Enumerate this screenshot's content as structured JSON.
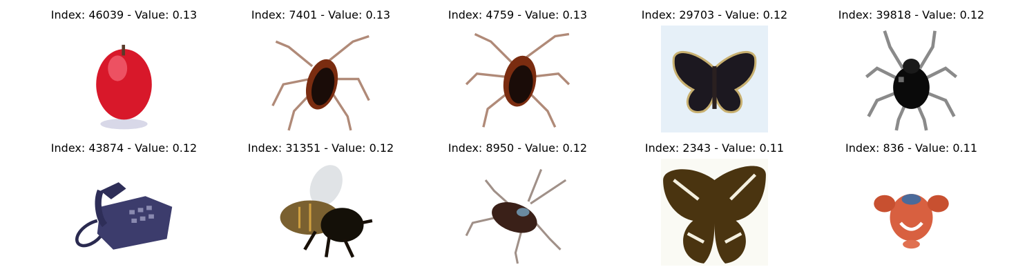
{
  "figure": {
    "cells": [
      {
        "caption": "Index: 46039 - Value: 0.13",
        "icon": "apple-icon"
      },
      {
        "caption": "Index: 7401 - Value: 0.13",
        "icon": "cockroach-icon"
      },
      {
        "caption": "Index: 4759 - Value: 0.13",
        "icon": "cockroach-icon"
      },
      {
        "caption": "Index: 29703 - Value: 0.12",
        "icon": "butterfly-icon"
      },
      {
        "caption": "Index: 39818 - Value: 0.12",
        "icon": "beetle-icon"
      },
      {
        "caption": "Index: 43874 - Value: 0.12",
        "icon": "telephone-icon"
      },
      {
        "caption": "Index: 31351 - Value: 0.12",
        "icon": "bee-icon"
      },
      {
        "caption": "Index: 8950 - Value: 0.12",
        "icon": "cockroach-icon"
      },
      {
        "caption": "Index: 2343 - Value: 0.11",
        "icon": "butterfly-icon"
      },
      {
        "caption": "Index: 836 - Value: 0.11",
        "icon": "crab-icon"
      }
    ]
  }
}
